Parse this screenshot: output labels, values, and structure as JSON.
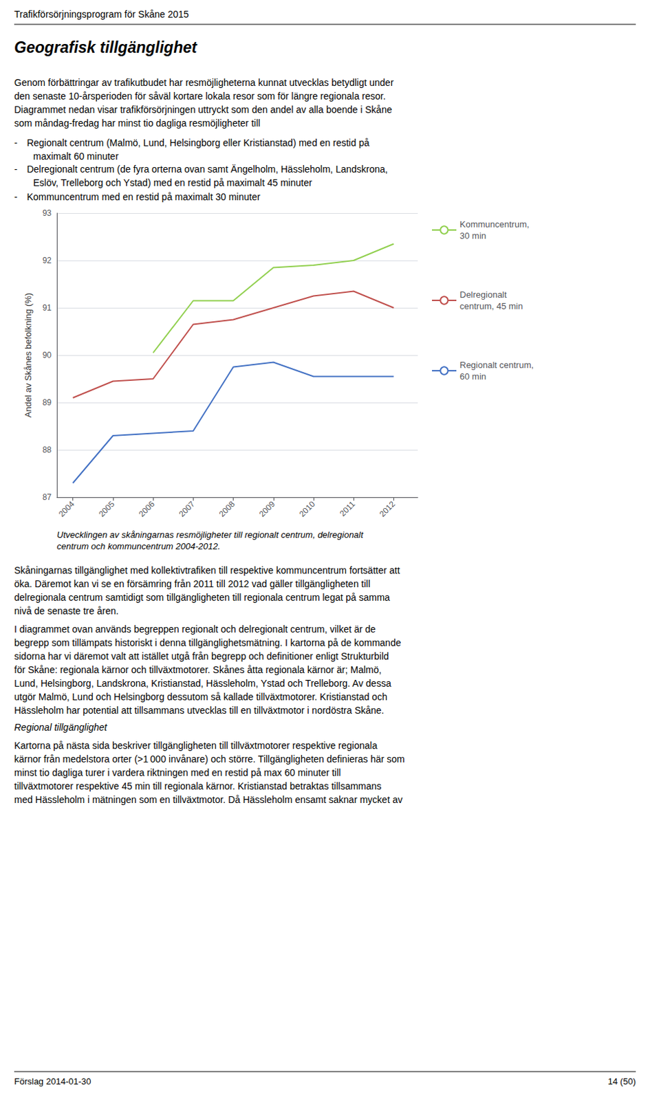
{
  "chart_data": {
    "type": "line",
    "x": [
      2004,
      2005,
      2006,
      2007,
      2008,
      2009,
      2010,
      2011,
      2012
    ],
    "xlim": [
      2003.6,
      2012.6
    ],
    "xticks": [
      2004,
      2005,
      2006,
      2007,
      2008,
      2009,
      2010,
      2011,
      2012
    ],
    "ylabel": "Andel av Skånes befolkning (%)",
    "ylim": [
      87,
      93
    ],
    "yticks": [
      87,
      88,
      89,
      90,
      91,
      92,
      93
    ],
    "grid": true,
    "legend": "right",
    "series": [
      {
        "name": "Kommuncentrum,\n30 min",
        "color": "#92d050",
        "values": [
          null,
          null,
          90.05,
          91.15,
          91.15,
          91.85,
          91.9,
          92.0,
          92.35
        ]
      },
      {
        "name": "Delregionalt\ncentrum, 45 min",
        "color": "#c0504d",
        "values": [
          89.1,
          89.45,
          89.5,
          90.65,
          90.75,
          91.0,
          91.25,
          91.35,
          91.0
        ]
      },
      {
        "name": "Regionalt centrum,\n60 min",
        "color": "#4472c4",
        "values": [
          87.3,
          88.3,
          88.35,
          88.4,
          89.75,
          89.85,
          89.55,
          89.55,
          89.55
        ]
      }
    ],
    "annotations": [
      "Trafikförsörjningsprogram för Skåne 2015",
      "Geografisk tillgänglighet",
      "Genom förbättringar av trafikutbudet har resmöjligheterna kunnat utvecklas betydligt under\nden senaste 10-årsperioden för såväl kortare lokala resor som för längre regionala resor.\nDiagrammet nedan visar trafikförsörjningen uttryckt som den andel av alla boende i Skåne\nsom måndag-fredag har minst tio dagliga resmöjligheter till",
      "- Regionalt centrum (Malmö, Lund, Helsingborg eller Kristianstad) med en restid på\n  maximalt 60 minuter",
      "- Delregionalt centrum (de fyra orterna ovan samt Ängelholm, Hässleholm, Landskrona,\n  Eslöv, Trelleborg och Ystad) med en restid på maximalt 45 minuter",
      "- Kommuncentrum med en restid på maximalt 30 minuter",
      "Utvecklingen av skåningarnas resmöjligheter till regionalt centrum, delregionalt\ncentrum och kommuncentrum 2004-2012.",
      "Skåningarnas tillgänglighet med kollektivtrafiken till respektive kommuncentrum fortsätter att\nöka. Däremot kan vi se en försämring från 2011 till 2012 vad gäller tillgängligheten till\ndelregionala centrum samtidigt som tillgängligheten till regionala centrum legat på samma\nnivå de senaste tre åren.",
      "I diagrammet ovan används begreppen regionalt och delregionalt centrum, vilket är de\nbegrepp som tillämpats historiskt i denna tillgänglighetsmätning. I kartorna på de kommande\nsidorna har vi däremot valt att istället utgå från begrepp och definitioner enligt Strukturbild\nför Skåne: regionala kärnor och tillväxtmotorer. Skånes åtta regionala kärnor är; Malmö,\nLund, Helsingborg, Landskrona, Kristianstad, Hässleholm, Ystad och Trelleborg. Av dessa\nutgör Malmö, Lund och Helsingborg dessutom så kallade tillväxtmotorer. Kristianstad och\nHässleholm har potential att tillsammans utvecklas till en tillväxtmotor i nordöstra Skåne.",
      "Regional tillgänglighet",
      "Kartorna på nästa sida beskriver tillgängligheten till tillväxtmotorer respektive regionala\nkärnor från medelstora orter (>1 000 invånare) och större. Tillgängligheten definieras här som\nminst tio dagliga turer i vardera riktningen med en restid på max 60 minuter till\ntillväxtmotorer respektive 45 min till regionala kärnor. Kristianstad betraktas tillsammans\nmed Hässleholm i mätningen som en tillväxtmotor. Då Hässleholm ensamt saknar mycket av",
      "Förslag 2014-01-30",
      "14 (50)"
    ]
  }
}
